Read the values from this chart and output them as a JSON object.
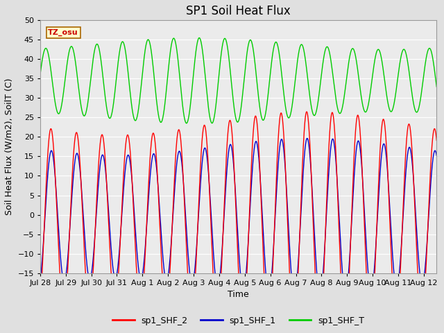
{
  "title": "SP1 Soil Heat Flux",
  "xlabel": "Time",
  "ylabel": "Soil Heat Flux (W/m2), SoilT (C)",
  "ylim": [
    -15,
    50
  ],
  "yticks": [
    -15,
    -10,
    -5,
    0,
    5,
    10,
    15,
    20,
    25,
    30,
    35,
    40,
    45,
    50
  ],
  "xtick_labels": [
    "Jul 28",
    "Jul 29",
    "Jul 30",
    "Jul 31",
    "Aug 1",
    "Aug 2",
    "Aug 3",
    "Aug 4",
    "Aug 5",
    "Aug 6",
    "Aug 7",
    "Aug 8",
    "Aug 9",
    "Aug 10",
    "Aug 11",
    "Aug 12"
  ],
  "color_shf2": "#ff0000",
  "color_shf1": "#0000cc",
  "color_shfT": "#00cc00",
  "legend_labels": [
    "sp1_SHF_2",
    "sp1_SHF_1",
    "sp1_SHF_T"
  ],
  "tz_label": "TZ_osu",
  "bg_color": "#e0e0e0",
  "plot_bg_color": "#ebebeb",
  "grid_color": "#ffffff",
  "title_fontsize": 12,
  "axis_fontsize": 9,
  "tick_fontsize": 8
}
